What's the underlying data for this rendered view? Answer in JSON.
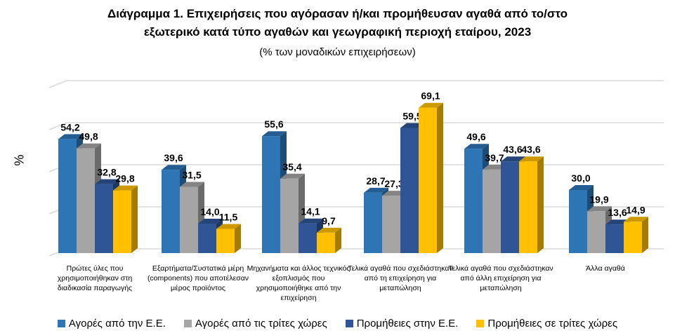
{
  "chart_data": {
    "type": "bar",
    "title": "Διάγραμμα 1. Επιχειρήσεις που αγόρασαν ή/και προμήθευσαν αγαθά από το/στο εξωτερικό κατά τύπο αγαθών και γεωγραφική περιοχή εταίρου, 2023",
    "title_lines": [
      "Διάγραμμα 1. Επιχειρήσεις που αγόρασαν ή/και προμήθευσαν αγαθά από το/στο",
      "εξωτερικό κατά τύπο αγαθών και γεωγραφική περιοχή εταίρου, 2023"
    ],
    "subtitle": "(% των μοναδικών επιχειρήσεων)",
    "ylabel": "%",
    "ylim": [
      0,
      80
    ],
    "grid": true,
    "legend": "bottom",
    "style": "3d-clustered-column",
    "categories": [
      "Πρώτες ύλες που χρησιμοποιήθηκαν στη διαδικασία παραγωγής",
      "Εξαρτήματα/Συστατικά μέρη (components) που αποτέλεσαν μέρος προϊόντος",
      "Μηχανήματα και άλλος τεχνικός εξοπλισμός που χρησιμοποιήθηκε από την επιχείρηση",
      "Τελικά αγαθά που σχεδιάστηκαν από τη επιχείρηση για μεταπώληση",
      "Τελικά αγαθά που σχεδιάστηκαν από άλλη επιχείρηση για μεταπώληση",
      "Άλλα αγαθά"
    ],
    "series": [
      {
        "name": "Αγορές από την Ε.Ε.",
        "color": "#2E75B6",
        "values": [
          54.2,
          39.6,
          55.6,
          28.7,
          49.6,
          30.0
        ]
      },
      {
        "name": "Αγορές από τις τρίτες χώρες",
        "color": "#A5A5A5",
        "values": [
          49.8,
          31.5,
          35.4,
          27.3,
          39.7,
          19.9
        ]
      },
      {
        "name": "Προμήθειες στην Ε.Ε.",
        "color": "#2F5597",
        "values": [
          32.8,
          14.0,
          14.1,
          59.5,
          43.6,
          13.6
        ]
      },
      {
        "name": "Προμήθειες σε τρίτες χώρες",
        "color": "#FFC000",
        "values": [
          29.8,
          11.5,
          9.7,
          69.1,
          43.6,
          14.9
        ]
      }
    ]
  }
}
